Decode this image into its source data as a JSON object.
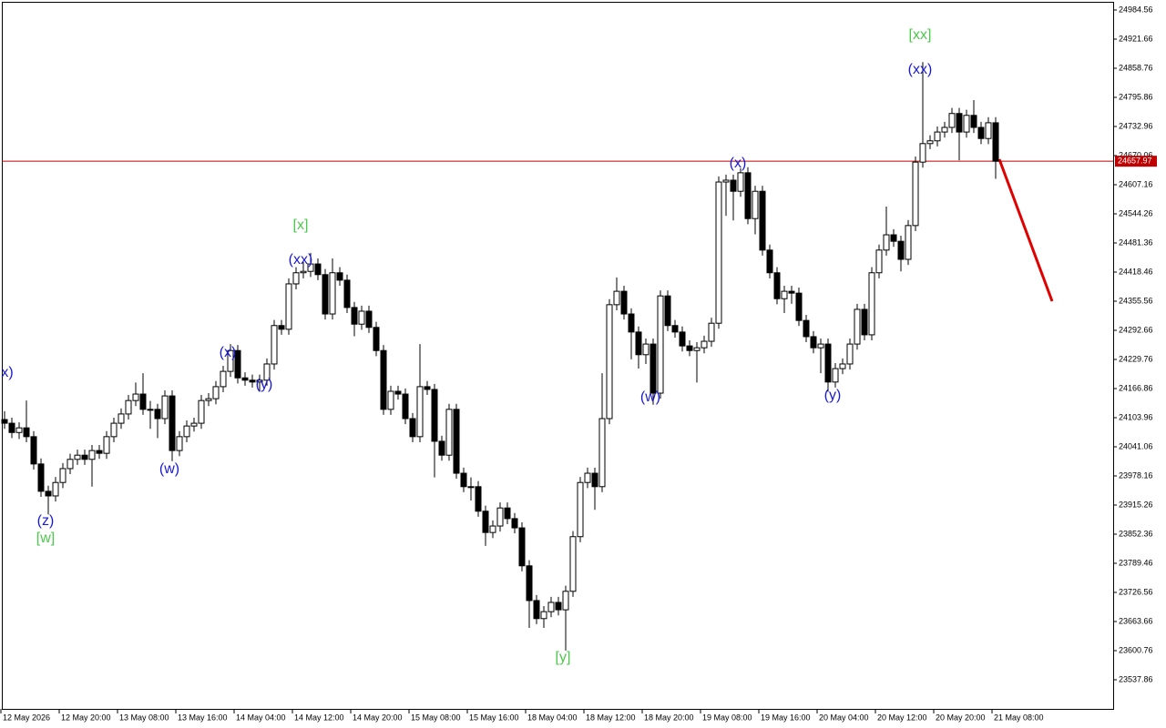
{
  "chart_data": {
    "type": "candlestick",
    "bull_color": "#ffffff",
    "bear_color": "#000000",
    "outline_color": "#000000",
    "price_line": 24657.97,
    "price_line_color": "#c00000",
    "ylim": [
      23474.98,
      25002.25
    ],
    "yticks": [
      24984.56,
      24921.66,
      24858.76,
      24795.86,
      24732.96,
      24670.06,
      24607.16,
      24544.26,
      24481.36,
      24418.46,
      24355.56,
      24292.66,
      24229.76,
      24166.86,
      24103.96,
      24041.06,
      23978.16,
      23915.26,
      23852.36,
      23789.46,
      23726.56,
      23663.66,
      23600.76,
      23537.86
    ],
    "xticks": [
      {
        "value": 0,
        "label": "12 May 2026"
      },
      {
        "value": 8,
        "label": "12 May 20:00"
      },
      {
        "value": 16,
        "label": "13 May 08:00"
      },
      {
        "value": 24,
        "label": "13 May 16:00"
      },
      {
        "value": 32,
        "label": "14 May 04:00"
      },
      {
        "value": 40,
        "label": "14 May 12:00"
      },
      {
        "value": 48,
        "label": "14 May 20:00"
      },
      {
        "value": 56,
        "label": "15 May 08:00"
      },
      {
        "value": 64,
        "label": "15 May 16:00"
      },
      {
        "value": 72,
        "label": "18 May 04:00"
      },
      {
        "value": 80,
        "label": "18 May 12:00"
      },
      {
        "value": 88,
        "label": "18 May 20:00"
      },
      {
        "value": 96,
        "label": "19 May 08:00"
      },
      {
        "value": 104,
        "label": "19 May 16:00"
      },
      {
        "value": 112,
        "label": "20 May 04:00"
      },
      {
        "value": 120,
        "label": "20 May 12:00"
      },
      {
        "value": 128,
        "label": "20 May 20:00"
      },
      {
        "value": 136,
        "label": "21 May 08:00"
      }
    ],
    "open": [
      24100,
      24092,
      24072,
      24082,
      24063,
      24004,
      23945,
      23935,
      23964,
      23994,
      24014,
      24023,
      24014,
      24033,
      24027,
      24063,
      24092,
      24112,
      24141,
      24155,
      24122,
      24122,
      24102,
      24151,
      24033,
      24063,
      24086,
      24092,
      24141,
      24145,
      24171,
      24204,
      24249,
      24190,
      24185,
      24181,
      24185,
      24220,
      24303,
      24295,
      24393,
      24417,
      24420,
      24436,
      24413,
      24328,
      24417,
      24401,
      24342,
      24306,
      24334,
      24299,
      24249,
      24122,
      24161,
      24155,
      24102,
      24063,
      24171,
      24165,
      24053,
      24023,
      24122,
      23984,
      23955,
      23955,
      23902,
      23856,
      23870,
      23909,
      23886,
      23866,
      23784,
      23709,
      23670,
      23685,
      23705,
      23689,
      23729,
      23847,
      23964,
      23984,
      23955,
      24102,
      24348,
      24377,
      24328,
      24289,
      24240,
      24263,
      24157,
      24367,
      24303,
      24289,
      24259,
      24249,
      24255,
      24269,
      24308,
      24613,
      24617,
      24593,
      24633,
      24534,
      24593,
      24466,
      24417,
      24361,
      24377,
      24373,
      24314,
      24279,
      24255,
      24263,
      24181,
      24210,
      24220,
      24263,
      24338,
      24283,
      24417,
      24466,
      24499,
      24485,
      24446,
      24519,
      24656,
      24696,
      24702,
      24721,
      24731,
      24761,
      24721,
      24757,
      24731,
      24707,
      24741
    ],
    "high": [
      24118,
      24104,
      24094,
      24141,
      24075,
      24016,
      23957,
      23976,
      24006,
      24026,
      24035,
      24035,
      24045,
      24045,
      24075,
      24104,
      24124,
      24153,
      24180,
      24200,
      24140,
      24134,
      24163,
      24163,
      24075,
      24098,
      24104,
      24153,
      24157,
      24183,
      24216,
      24263,
      24261,
      24202,
      24197,
      24197,
      24232,
      24315,
      24315,
      24405,
      24429,
      24440,
      24460,
      24448,
      24425,
      24448,
      24429,
      24413,
      24354,
      24346,
      24346,
      24311,
      24261,
      24173,
      24173,
      24167,
      24114,
      24263,
      24183,
      24177,
      24065,
      24134,
      24134,
      23996,
      23975,
      23967,
      23914,
      23882,
      23921,
      23921,
      23898,
      23878,
      23796,
      23721,
      23697,
      23717,
      23717,
      23741,
      23859,
      23976,
      23996,
      23996,
      24200,
      24360,
      24407,
      24389,
      24340,
      24301,
      24275,
      24275,
      24379,
      24379,
      24315,
      24301,
      24271,
      24267,
      24281,
      24320,
      24625,
      24629,
      24629,
      24643,
      24645,
      24605,
      24605,
      24478,
      24429,
      24389,
      24389,
      24385,
      24326,
      24291,
      24275,
      24275,
      24222,
      24232,
      24275,
      24350,
      24350,
      24429,
      24478,
      24560,
      24511,
      24497,
      24531,
      24668,
      24872,
      24714,
      24733,
      24743,
      24773,
      24773,
      24769,
      24790,
      24743,
      24753,
      24753
    ],
    "low": [
      24080,
      24060,
      24058,
      24051,
      23992,
      23933,
      23895,
      23923,
      23952,
      23982,
      24002,
      24002,
      23955,
      24015,
      24015,
      24051,
      24080,
      24100,
      24129,
      24110,
      24080,
      24060,
      24090,
      24010,
      24021,
      24051,
      24074,
      24080,
      24129,
      24133,
      24159,
      24192,
      24178,
      24173,
      24169,
      24160,
      24173,
      24208,
      24283,
      24283,
      24381,
      24405,
      24408,
      24401,
      24316,
      24316,
      24389,
      24330,
      24280,
      24294,
      24287,
      24237,
      24110,
      24110,
      24143,
      24090,
      24051,
      24051,
      24153,
      23975,
      24011,
      24011,
      23972,
      23943,
      23925,
      23890,
      23827,
      23844,
      23858,
      23874,
      23854,
      23772,
      23650,
      23658,
      23650,
      23673,
      23677,
      23601,
      23717,
      23835,
      23952,
      23905,
      23943,
      24090,
      24336,
      24316,
      24230,
      24210,
      24220,
      24132,
      24145,
      24291,
      24277,
      24247,
      24237,
      24180,
      24243,
      24257,
      24296,
      24540,
      24530,
      24581,
      24522,
      24500,
      24454,
      24405,
      24349,
      24330,
      24350,
      24302,
      24267,
      24243,
      24200,
      24160,
      24169,
      24198,
      24208,
      24251,
      24271,
      24271,
      24405,
      24454,
      24473,
      24420,
      24434,
      24507,
      24644,
      24684,
      24690,
      24709,
      24719,
      24660,
      24709,
      24719,
      24695,
      24695,
      24620
    ],
    "close": [
      24092,
      24072,
      24082,
      24063,
      24004,
      23945,
      23935,
      23964,
      23994,
      24014,
      24023,
      24014,
      24033,
      24027,
      24063,
      24092,
      24112,
      24141,
      24155,
      24122,
      24122,
      24102,
      24151,
      24033,
      24063,
      24086,
      24092,
      24141,
      24145,
      24171,
      24204,
      24249,
      24190,
      24185,
      24181,
      24185,
      24220,
      24303,
      24295,
      24393,
      24417,
      24420,
      24436,
      24413,
      24328,
      24417,
      24401,
      24342,
      24306,
      24334,
      24299,
      24249,
      24122,
      24161,
      24155,
      24102,
      24063,
      24171,
      24165,
      24053,
      24023,
      24122,
      23984,
      23955,
      23955,
      23902,
      23856,
      23870,
      23909,
      23886,
      23866,
      23784,
      23709,
      23670,
      23685,
      23705,
      23689,
      23729,
      23847,
      23964,
      23984,
      23955,
      24102,
      24348,
      24377,
      24328,
      24289,
      24240,
      24263,
      24157,
      24367,
      24303,
      24289,
      24259,
      24249,
      24255,
      24269,
      24308,
      24613,
      24617,
      24593,
      24633,
      24534,
      24593,
      24466,
      24417,
      24361,
      24377,
      24373,
      24314,
      24279,
      24255,
      24263,
      24181,
      24210,
      24220,
      24263,
      24338,
      24283,
      24417,
      24466,
      24499,
      24485,
      24446,
      24519,
      24656,
      24696,
      24702,
      24721,
      24731,
      24761,
      24721,
      24757,
      24731,
      24707,
      24741,
      24657.97
    ],
    "annotations": [
      {
        "text": "x)",
        "color": "#1a1ad2"
      },
      {
        "text": "(z)",
        "color": "#1a1ad2"
      },
      {
        "text": "[w]",
        "color": "#4cc84c"
      },
      {
        "text": "(w)",
        "color": "#1a1ad2"
      },
      {
        "text": "(x)",
        "color": "#1a1ad2"
      },
      {
        "text": "(y)",
        "color": "#1a1ad2"
      },
      {
        "text": "[x]",
        "color": "#4cc84c"
      },
      {
        "text": "(xx)",
        "color": "#1a1ad2"
      },
      {
        "text": "[y]",
        "color": "#4cc84c"
      },
      {
        "text": "(w)",
        "color": "#1a1ad2"
      },
      {
        "text": "(x)",
        "color": "#1a1ad2"
      },
      {
        "text": "(y)",
        "color": "#1a1ad2"
      },
      {
        "text": "(xx)",
        "color": "#1a1ad2"
      },
      {
        "text": "[xx]",
        "color": "#4cc84c"
      }
    ]
  }
}
